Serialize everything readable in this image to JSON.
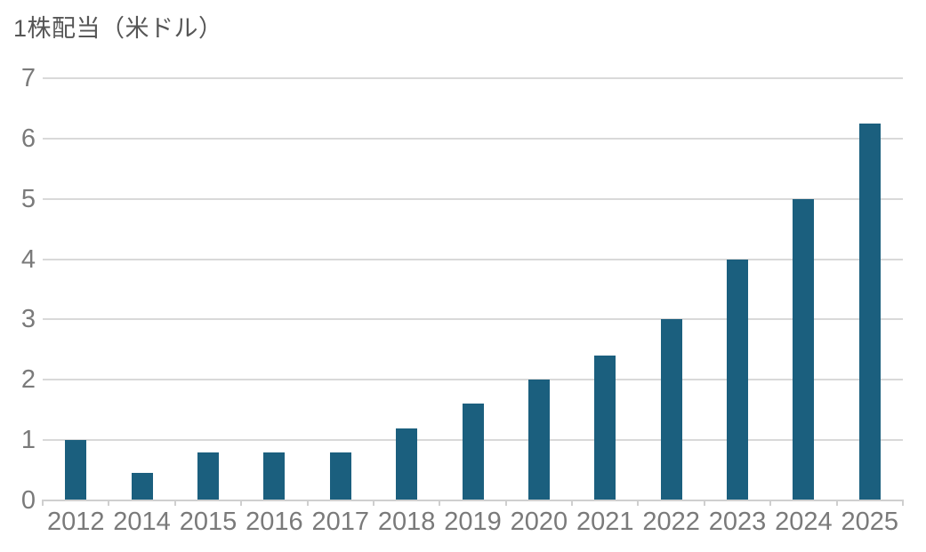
{
  "chart_data": {
    "type": "bar",
    "title": "1株配当（米ドル）",
    "categories": [
      "2012",
      "2014",
      "2015",
      "2016",
      "2017",
      "2018",
      "2019",
      "2020",
      "2021",
      "2022",
      "2023",
      "2024",
      "2025"
    ],
    "values": [
      1.0,
      0.45,
      0.8,
      0.8,
      0.8,
      1.2,
      1.6,
      2.0,
      2.4,
      3.0,
      4.0,
      5.0,
      6.25
    ],
    "xlabel": "",
    "ylabel": "",
    "ylim": [
      0,
      7
    ],
    "yticks": [
      0,
      1,
      2,
      3,
      4,
      5,
      6,
      7
    ],
    "grid": true,
    "legend_position": "none",
    "colors": {
      "bar": "#1b5f7e",
      "gridline": "#d9d9d9",
      "axis": "#cfcfcf",
      "tick_label": "#7a7a7a",
      "title": "#565656",
      "background": "#ffffff"
    }
  }
}
